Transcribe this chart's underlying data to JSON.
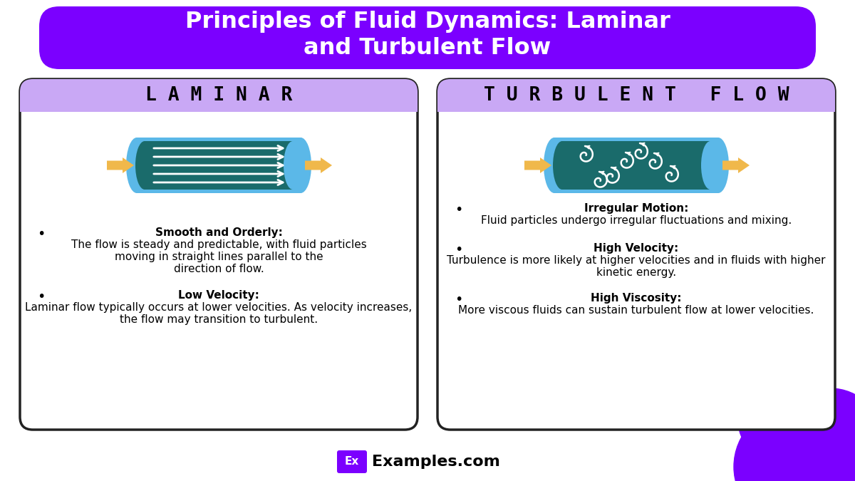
{
  "title_line1": "Principles of Fluid Dynamics: Laminar",
  "title_line2": "and Turbulent Flow",
  "title_bg_color": "#7B00FF",
  "title_text_color": "#FFFFFF",
  "bg_color": "#FFFFFF",
  "left_header": "L A M I N A R",
  "right_header": "T U R B U L E N T   F L O W",
  "header_bg_color": "#C9A8F5",
  "card_border_color": "#222222",
  "card_bg_color": "#FFFFFF",
  "tube_outer_color": "#5BB8E8",
  "tube_inner_color": "#1A6B6B",
  "arrow_color": "#F0B84B",
  "blob_color": "#7B00FF",
  "footer_box_color": "#7B00FF",
  "footer_text": "Examples.com",
  "footer_prefix": "Ex"
}
